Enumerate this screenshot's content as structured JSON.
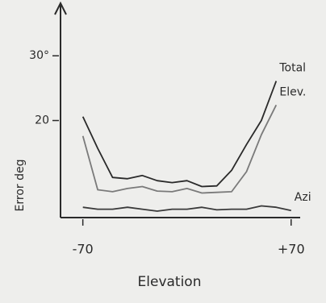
{
  "chart_data": {
    "type": "line",
    "x_label": "Elevation",
    "y_label": "Error deg",
    "x": [
      -70,
      -60,
      -50,
      -40,
      -30,
      -20,
      -10,
      0,
      10,
      20,
      30,
      40,
      50,
      60,
      70
    ],
    "series": [
      {
        "name": "Total",
        "color": "#2a2a2a",
        "values": [
          20.6,
          15.7,
          11.2,
          11,
          11.5,
          10.7,
          10.4,
          10.7,
          9.8,
          9.9,
          12.3,
          16.3,
          20,
          26.1,
          null
        ]
      },
      {
        "name": "Elev.",
        "color": "#7a7a7a",
        "values": [
          17.6,
          9.3,
          9,
          9.5,
          9.8,
          9.1,
          9,
          9.5,
          8.8,
          8.9,
          9,
          12.1,
          17.8,
          22.4,
          null
        ]
      },
      {
        "name": "Azi",
        "color": "#3a3a3a",
        "values": [
          6.6,
          6.3,
          6.3,
          6.6,
          6.3,
          6,
          6.3,
          6.3,
          6.6,
          6.2,
          6.3,
          6.3,
          6.8,
          6.6,
          6.1
        ]
      }
    ],
    "xlim": [
      -85,
      75
    ],
    "ylim": [
      5,
      38
    ],
    "xticks": [
      -70,
      {
        "value": 70,
        "label": "+70"
      }
    ],
    "yticks": [
      20,
      {
        "value": 30,
        "label": "30°"
      }
    ],
    "grid": false
  }
}
